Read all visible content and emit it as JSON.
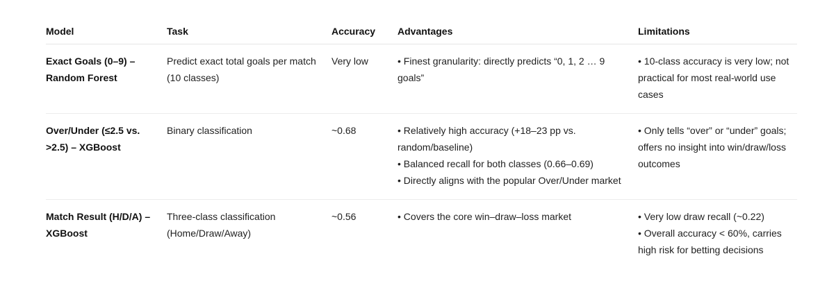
{
  "table": {
    "headers": [
      "Model",
      "Task",
      "Accuracy",
      "Advantages",
      "Limitations"
    ],
    "rows": [
      {
        "model": "Exact Goals (0–9) – Random Forest",
        "task": "Predict exact total goals per match (10 classes)",
        "accuracy": "Very low",
        "advantages": [
          "• Finest granularity: directly predicts “0, 1, 2 … 9 goals”"
        ],
        "limitations": [
          "• 10-class accuracy is very low; not practical for most real-world use cases"
        ]
      },
      {
        "model": "Over/Under (≤2.5 vs. >2.5) – XGBoost",
        "task": "Binary classification",
        "accuracy": "~0.68",
        "advantages": [
          "• Relatively high accuracy (+18–23 pp vs. random/baseline)",
          "• Balanced recall for both classes (0.66–0.69)",
          "• Directly aligns with the popular Over/Under market"
        ],
        "limitations": [
          "• Only tells “over” or “under” goals; offers no insight into win/draw/loss outcomes"
        ]
      },
      {
        "model": "Match Result (H/D/A) – XGBoost",
        "task": "Three-class classification (Home/Draw/Away)",
        "accuracy": "~0.56",
        "advantages": [
          "• Covers the core win–draw–loss market"
        ],
        "limitations": [
          "• Very low draw recall (~0.22)",
          "• Overall accuracy < 60%, carries high risk for betting decisions"
        ]
      }
    ]
  }
}
